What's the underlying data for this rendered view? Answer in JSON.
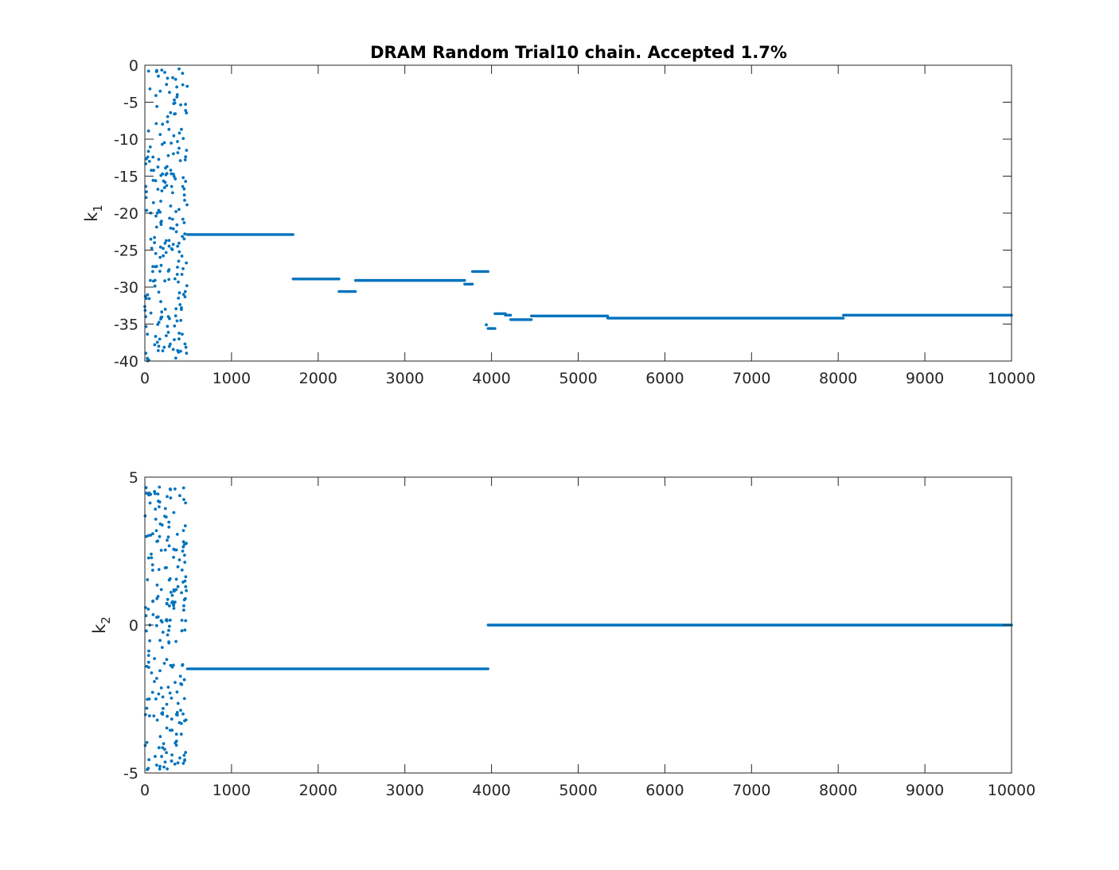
{
  "chart_data": [
    {
      "type": "scatter",
      "title": "DRAM Random Trial10 chain. Accepted 1.7%",
      "ylabel_base": "k",
      "ylabel_sub": "1",
      "xlim": [
        0,
        10000
      ],
      "ylim": [
        -40,
        0
      ],
      "xticks": [
        0,
        1000,
        2000,
        3000,
        4000,
        5000,
        6000,
        7000,
        8000,
        9000,
        10000
      ],
      "yticks": [
        0,
        -5,
        -10,
        -15,
        -20,
        -25,
        -30,
        -35,
        -40
      ],
      "color": "#0072BD",
      "grid": false,
      "burnin_cloud": {
        "x_range": [
          0,
          490
        ],
        "y_range": [
          -40,
          -0.5
        ],
        "count": 230
      },
      "plateaus": [
        {
          "x_start": 490,
          "x_end": 1710,
          "y": -22.9
        },
        {
          "x_start": 1710,
          "x_end": 2240,
          "y": -28.9
        },
        {
          "x_start": 2240,
          "x_end": 2430,
          "y": -30.6
        },
        {
          "x_start": 2430,
          "x_end": 3690,
          "y": -29.1
        },
        {
          "x_start": 3690,
          "x_end": 3780,
          "y": -29.6
        },
        {
          "x_start": 3780,
          "x_end": 3960,
          "y": -27.9
        },
        {
          "x_start": 3960,
          "x_end": 4040,
          "y": -35.6
        },
        {
          "x_start": 4040,
          "x_end": 4160,
          "y": -33.6
        },
        {
          "x_start": 4160,
          "x_end": 4220,
          "y": -33.8
        },
        {
          "x_start": 4220,
          "x_end": 4460,
          "y": -34.4
        },
        {
          "x_start": 4460,
          "x_end": 5340,
          "y": -33.9
        },
        {
          "x_start": 5340,
          "x_end": 8060,
          "y": -34.2
        },
        {
          "x_start": 8060,
          "x_end": 10000,
          "y": -33.8
        }
      ],
      "points": [
        {
          "x": 395,
          "y": -0.5
        },
        {
          "x": 3940,
          "y": -35.1
        }
      ]
    },
    {
      "type": "scatter",
      "title": "",
      "ylabel_base": "k",
      "ylabel_sub": "2",
      "xlim": [
        0,
        10000
      ],
      "ylim": [
        -5,
        5
      ],
      "xticks": [
        0,
        1000,
        2000,
        3000,
        4000,
        5000,
        6000,
        7000,
        8000,
        9000,
        10000
      ],
      "yticks": [
        5,
        0,
        -5
      ],
      "color": "#0072BD",
      "grid": false,
      "burnin_cloud": {
        "x_range": [
          0,
          490
        ],
        "y_range": [
          -4.9,
          4.8
        ],
        "count": 230
      },
      "plateaus": [
        {
          "x_start": 490,
          "x_end": 3960,
          "y": -1.48
        },
        {
          "x_start": 3960,
          "x_end": 10000,
          "y": 0.0
        }
      ],
      "points": []
    }
  ]
}
